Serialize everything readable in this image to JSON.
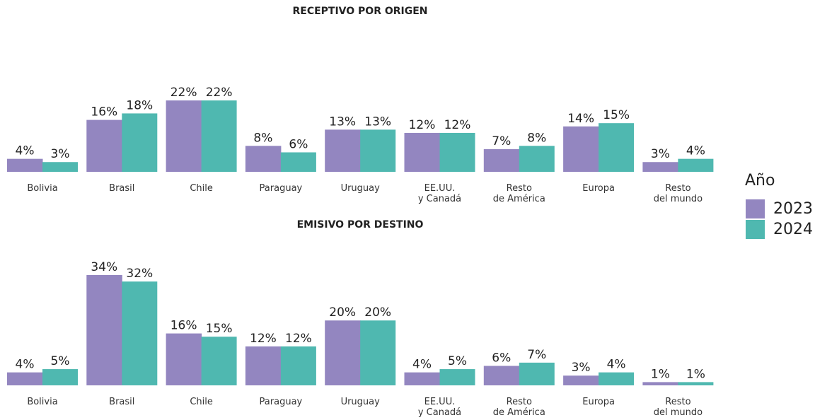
{
  "chart_data": [
    {
      "type": "bar",
      "title": "RECEPTIVO POR ORIGEN",
      "legend_title": "Año",
      "categories": [
        "Bolivia",
        "Brasil",
        "Chile",
        "Paraguay",
        "Uruguay",
        "EE.UU.\ny Canadá",
        "Resto\nde América",
        "Europa",
        "Resto\ndel mundo"
      ],
      "series": [
        {
          "name": "2023",
          "color": "#9386c0",
          "values": [
            4,
            16,
            22,
            8,
            13,
            12,
            7,
            14,
            3
          ],
          "value_labels": [
            "4%",
            "16%",
            "22%",
            "8%",
            "13%",
            "12%",
            "7%",
            "14%",
            "3%"
          ]
        },
        {
          "name": "2024",
          "color": "#4fb8b0",
          "values": [
            3,
            18,
            22,
            6,
            13,
            12,
            8,
            15,
            4
          ],
          "value_labels": [
            "3%",
            "18%",
            "22%",
            "6%",
            "13%",
            "12%",
            "8%",
            "15%",
            "4%"
          ]
        }
      ]
    },
    {
      "type": "bar",
      "title": "EMISIVO POR DESTINO",
      "categories": [
        "Bolivia",
        "Brasil",
        "Chile",
        "Paraguay",
        "Uruguay",
        "EE.UU.\ny Canadá",
        "Resto\nde América",
        "Europa",
        "Resto\ndel mundo"
      ],
      "series": [
        {
          "name": "2023",
          "color": "#9386c0",
          "values": [
            4,
            34,
            16,
            12,
            20,
            4,
            6,
            3,
            1
          ],
          "value_labels": [
            "4%",
            "34%",
            "16%",
            "12%",
            "20%",
            "4%",
            "6%",
            "3%",
            "1%"
          ]
        },
        {
          "name": "2024",
          "color": "#4fb8b0",
          "values": [
            5,
            32,
            15,
            12,
            20,
            5,
            7,
            4,
            1
          ],
          "value_labels": [
            "5%",
            "32%",
            "15%",
            "12%",
            "20%",
            "5%",
            "7%",
            "4%",
            "1%"
          ]
        }
      ]
    }
  ]
}
